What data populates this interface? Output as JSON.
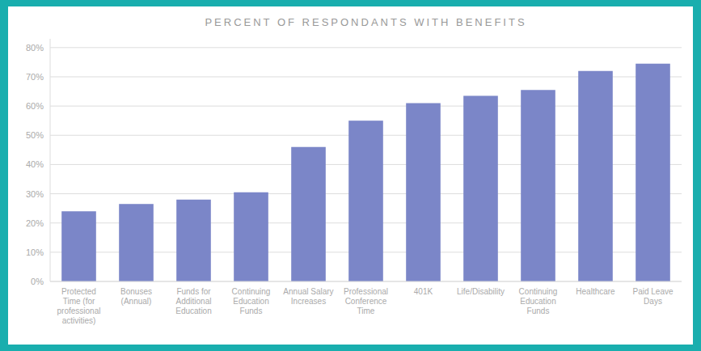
{
  "chart_data": {
    "type": "bar",
    "title": "PERCENT OF RESPONDANTS WITH BENEFITS",
    "categories": [
      "Protected\nTime (for\nprofessional\nactivities)",
      "Bonuses\n(Annual)",
      "Funds for\nAdditional\nEducation",
      "Continuing\nEducation\nFunds",
      "Annual Salary\nIncreases",
      "Professional\nConference\nTime",
      "401K",
      "Life/Disability",
      "Continuing\nEducation\nFunds",
      "Healthcare",
      "Paid Leave\nDays"
    ],
    "values": [
      24,
      26.5,
      28,
      30.5,
      46,
      55,
      61,
      63.5,
      65.5,
      72,
      74.5
    ],
    "color": "#7B86C8",
    "ylim": [
      0,
      83
    ],
    "yticks": [
      {
        "value": 0,
        "label": "0%"
      },
      {
        "value": 10,
        "label": "10%"
      },
      {
        "value": 20,
        "label": "20%"
      },
      {
        "value": 30,
        "label": "30%"
      },
      {
        "value": 40,
        "label": "40%"
      },
      {
        "value": 50,
        "label": "50%"
      },
      {
        "value": 60,
        "label": "60%"
      },
      {
        "value": 70,
        "label": "70%"
      },
      {
        "value": 80,
        "label": "80%"
      }
    ],
    "grid": true
  }
}
